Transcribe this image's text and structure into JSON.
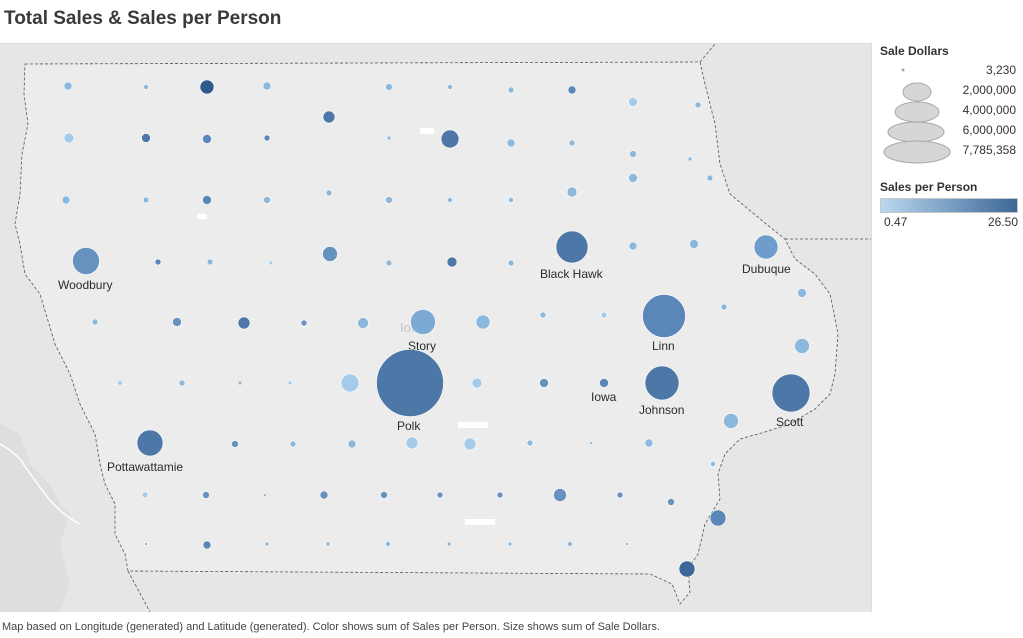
{
  "title": "Total Sales & Sales per Person",
  "footnote": "Map based on Longitude (generated) and Latitude (generated).  Color shows sum of Sales per Person.  Size shows sum of Sale Dollars.",
  "map_label": "Iowa",
  "legend": {
    "size_title": "Sale Dollars",
    "size_entries": [
      {
        "label": "3,230",
        "value": 3230
      },
      {
        "label": "2,000,000",
        "value": 2000000
      },
      {
        "label": "4,000,000",
        "value": 4000000
      },
      {
        "label": "6,000,000",
        "value": 6000000
      },
      {
        "label": "7,785,358",
        "value": 7785358
      }
    ],
    "color_title": "Sales per Person",
    "color_min": "0.47",
    "color_max": "26.50",
    "color_low": "#b9d8f0",
    "color_high": "#3c6796"
  },
  "colors": {
    "map_background": "#e8e8e8",
    "state_fill": "#ececec",
    "bubble_light": "#b9d8f0",
    "bubble_dark": "#2f5b8c"
  },
  "counties": [
    {
      "name": "Woodbury",
      "sales": 2200000,
      "spp": 13
    },
    {
      "name": "Black Hawk",
      "sales": 2900000,
      "spp": 17
    },
    {
      "name": "Dubuque",
      "sales": 1700000,
      "spp": 11
    },
    {
      "name": "Story",
      "sales": 1800000,
      "spp": 9
    },
    {
      "name": "Linn",
      "sales": 5200000,
      "spp": 14
    },
    {
      "name": "Iowa",
      "sales": 250000,
      "spp": 13
    },
    {
      "name": "Johnson",
      "sales": 3300000,
      "spp": 16
    },
    {
      "name": "Polk",
      "sales": 7785358,
      "spp": 16
    },
    {
      "name": "Scott",
      "sales": 4100000,
      "spp": 15
    },
    {
      "name": "Pottawattamie",
      "sales": 2100000,
      "spp": 15
    }
  ]
}
